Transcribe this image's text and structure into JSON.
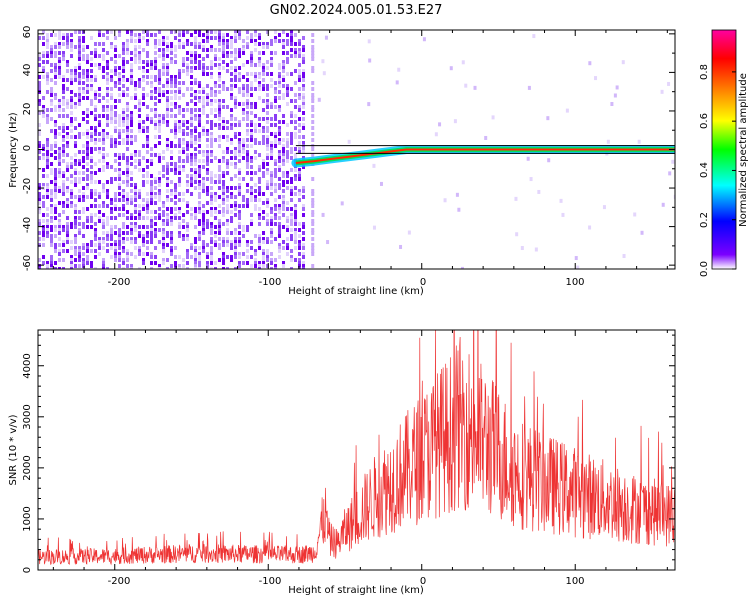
{
  "figure": {
    "title": "GN02.2024.005.01.53.E27"
  },
  "chart_data": [
    {
      "type": "heatmap",
      "title": "GN02.2024.005.01.53.E27",
      "xlabel": "Height of straight line (km)",
      "ylabel": "Frequency (Hz)",
      "xlim": [
        -250,
        165
      ],
      "ylim": [
        -62,
        62
      ],
      "x_ticks": [
        -200,
        -100,
        0,
        100
      ],
      "x_tick_labels": [
        "-200",
        "-100",
        "0",
        "100"
      ],
      "y_ticks": [
        -60,
        -40,
        -20,
        0,
        20,
        40,
        60
      ],
      "y_tick_labels": [
        "-60",
        "-40",
        "-20",
        "0",
        "20",
        "40",
        "60"
      ],
      "colorbar": {
        "label": "Normalized spectral amplitude",
        "range": [
          0,
          1
        ],
        "ticks": [
          0.0,
          0.2,
          0.4,
          0.6,
          0.8
        ],
        "tick_labels": [
          "0.0",
          "0.2",
          "0.4",
          "0.6",
          "0.8"
        ],
        "colors": [
          "#ffffff",
          "#7b00ff",
          "#0000ff",
          "#00ffff",
          "#00ff00",
          "#ffff00",
          "#ff8000",
          "#ff0000",
          "#ff00a0"
        ]
      },
      "noise_region_x": [
        -250,
        -80
      ],
      "signal_track": {
        "x": [
          -82,
          -70,
          -60,
          -50,
          -40,
          -30,
          -20,
          -10,
          0,
          20,
          50,
          100,
          165
        ],
        "y": [
          -7,
          -6,
          -5,
          -4,
          -3,
          -2,
          -1,
          0,
          0,
          0,
          0,
          0,
          0
        ]
      }
    },
    {
      "type": "line",
      "xlabel": "Height of straight line (km)",
      "ylabel": "SNR (10 * v/v)",
      "xlim": [
        -250,
        165
      ],
      "ylim": [
        0,
        4700
      ],
      "x_ticks": [
        -200,
        -100,
        0,
        100
      ],
      "x_tick_labels": [
        "-200",
        "-100",
        "0",
        "100"
      ],
      "y_ticks": [
        0,
        1000,
        2000,
        3000,
        4000
      ],
      "y_tick_labels": [
        "0",
        "1000",
        "2000",
        "3000",
        "4000"
      ],
      "series": [
        {
          "color": "#ee3333",
          "x": [
            -250,
            -200,
            -150,
            -100,
            -80,
            -70,
            -63,
            -60,
            -55,
            -50,
            -40,
            -30,
            -20,
            -10,
            0,
            10,
            20,
            25,
            30,
            40,
            50,
            60,
            80,
            100,
            120,
            140,
            165
          ],
          "y": [
            300,
            320,
            380,
            360,
            350,
            400,
            1300,
            700,
            600,
            900,
            1300,
            1700,
            2000,
            2300,
            2600,
            2900,
            3200,
            3400,
            3300,
            3000,
            2700,
            2300,
            2000,
            1800,
            1600,
            1400,
            1250
          ]
        }
      ]
    }
  ]
}
